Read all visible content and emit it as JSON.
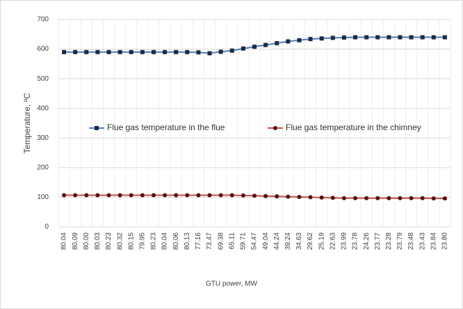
{
  "chart_data": {
    "type": "line",
    "categories": [
      "80.04",
      "80.09",
      "80.00",
      "80.03",
      "80.23",
      "80.32",
      "80.15",
      "79.95",
      "80.23",
      "80.04",
      "80.06",
      "80.13",
      "77.16",
      "73.47",
      "69.38",
      "65.11",
      "59.71",
      "54.47",
      "49.04",
      "44.24",
      "39.24",
      "34.63",
      "29.62",
      "25.19",
      "22.63",
      "23.99",
      "23.78",
      "24.26",
      "23.77",
      "23.28",
      "23.79",
      "23.48",
      "23.43",
      "23.84",
      "23.80"
    ],
    "series": [
      {
        "name": "Flue gas temperature in the flue",
        "color": "#4a7ebb",
        "marker_color": "#1f2a44",
        "marker": "square",
        "values": [
          590,
          590,
          590,
          590,
          590,
          590,
          590,
          590,
          590,
          590,
          590,
          590,
          589,
          586,
          591,
          595,
          602,
          608,
          614,
          620,
          626,
          630,
          634,
          636,
          638,
          639,
          640,
          640,
          640,
          640,
          640,
          640,
          640,
          640,
          640
        ]
      },
      {
        "name": "Flue gas temperature in the chimney",
        "color": "#c0504d",
        "marker_color": "#5a0f0f",
        "marker": "circle",
        "values": [
          107,
          107,
          107,
          107,
          107,
          107,
          107,
          107,
          107,
          107,
          107,
          107,
          107,
          107,
          107,
          107,
          106,
          105,
          104,
          103,
          102,
          101,
          100,
          99,
          98,
          97,
          97,
          97,
          97,
          97,
          97,
          97,
          97,
          96,
          96
        ]
      }
    ],
    "x_label": "GTU power, MW",
    "y_label": "Temperature, ºC",
    "ylim": [
      0,
      700
    ],
    "yticks": [
      0,
      100,
      200,
      300,
      400,
      500,
      600,
      700
    ],
    "grid": true
  }
}
